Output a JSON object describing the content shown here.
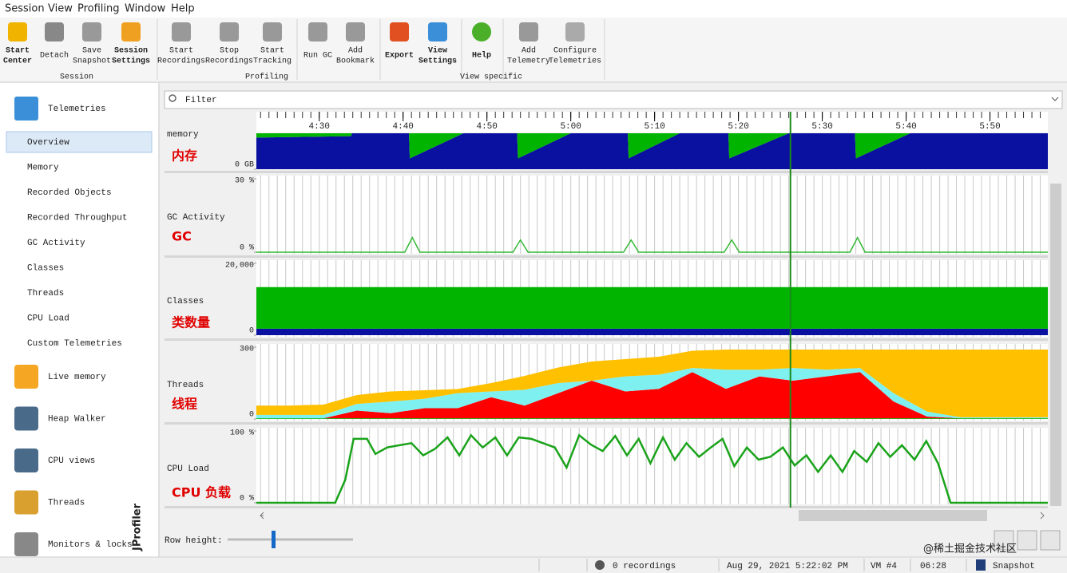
{
  "menu": [
    "Session",
    "View",
    "Profiling",
    "Window",
    "Help"
  ],
  "toolbar": [
    {
      "group": "Session",
      "buttons": [
        [
          "Start",
          "Center"
        ],
        [
          "Detach"
        ],
        [
          "Save",
          "Snapshot"
        ],
        [
          "Session",
          "Settings"
        ]
      ]
    },
    {
      "group": "Profiling",
      "buttons": [
        [
          "Start",
          "Recordings"
        ],
        [
          "Stop",
          "Recordings"
        ],
        [
          "Start",
          "Tracking"
        ],
        [
          "Run GC"
        ],
        [
          "Add",
          "Bookmark"
        ]
      ]
    },
    {
      "group": "View specific",
      "buttons": [
        [
          "Export"
        ],
        [
          "View",
          "Settings"
        ],
        [
          "Help"
        ],
        [
          "Add",
          "Telemetry"
        ],
        [
          "Configure",
          "Telemetries"
        ]
      ]
    }
  ],
  "sidebar": {
    "header": "Telemetries",
    "items": [
      "Overview",
      "Memory",
      "Recorded Objects",
      "Recorded Throughput",
      "GC Activity",
      "Classes",
      "Threads",
      "CPU Load",
      "Custom Telemetries"
    ],
    "sections": [
      "Live memory",
      "Heap Walker",
      "CPU views",
      "Threads",
      "Monitors & locks"
    ],
    "watermark": "JProfiler"
  },
  "filter": "Filter",
  "timeline": {
    "xlim": [
      262.5,
      356.9
    ],
    "ticks": [
      {
        "value": 270,
        "label": "4:30"
      },
      {
        "value": 280,
        "label": "4:40"
      },
      {
        "value": 290,
        "label": "4:50"
      },
      {
        "value": 300,
        "label": "5:00"
      },
      {
        "value": 310,
        "label": "5:10"
      },
      {
        "value": 320,
        "label": "5:20"
      },
      {
        "value": 330,
        "label": "5:30"
      },
      {
        "value": 340,
        "label": "5:40"
      },
      {
        "value": 350,
        "label": "5:50"
      }
    ],
    "cursor": 326.2
  },
  "rows": [
    {
      "label": "memory",
      "note": "内存",
      "type": "area",
      "ylim": [
        0,
        100
      ],
      "yticks": [
        {
          "value": 0,
          "label": "0 GB"
        }
      ],
      "series": [
        {
          "color": "#0a10a0",
          "x": [
            262.5,
            273.8,
            273.9,
            280.7,
            280.8,
            287.2,
            293.6,
            293.7,
            300,
            306.8,
            306.9,
            313,
            318.8,
            318.9,
            326,
            333.9,
            334,
            340.5,
            356.9
          ],
          "values": [
            88,
            92,
            100,
            100,
            30,
            100,
            100,
            30,
            100,
            100,
            30,
            100,
            100,
            30,
            100,
            100,
            30,
            100,
            100
          ]
        },
        {
          "color": "#00b400",
          "x": [
            262.5,
            273.8,
            273.9,
            280.7,
            280.8,
            287.2,
            293.6,
            293.7,
            300,
            306.8,
            306.9,
            313,
            318.8,
            318.9,
            326,
            333.9,
            334,
            340.5,
            356.9
          ],
          "values": [
            12,
            8,
            0,
            0,
            70,
            0,
            0,
            70,
            0,
            0,
            70,
            0,
            0,
            70,
            0,
            0,
            70,
            0,
            0
          ]
        }
      ]
    },
    {
      "label": "GC Activity",
      "note": "GC",
      "type": "line",
      "ylim": [
        0,
        30
      ],
      "yticks": [
        {
          "value": 0,
          "label": "0 %"
        },
        {
          "value": 30,
          "label": "30 %"
        }
      ],
      "series": [
        {
          "color": "#33b833",
          "x": [
            262.5,
            280.2,
            281.1,
            282,
            293.1,
            294,
            294.9,
            306.3,
            307.2,
            308.1,
            318.3,
            319.2,
            320.1,
            333.3,
            334.2,
            335.1,
            356.9
          ],
          "values": [
            0,
            0,
            6,
            0,
            0,
            5,
            0,
            0,
            5,
            0,
            0,
            5,
            0,
            0,
            6,
            0,
            0
          ]
        }
      ]
    },
    {
      "label": "Classes",
      "note": "类数量",
      "type": "area",
      "ylim": [
        0,
        20000
      ],
      "yticks": [
        0,
        {
          "value": 20000,
          "label": "20,000"
        }
      ],
      "series": [
        {
          "color": "#0a10a0",
          "x": [
            262.5,
            356.9
          ],
          "values": [
            1800,
            1800
          ]
        },
        {
          "color": "#00b400",
          "x": [
            262.5,
            356.9
          ],
          "values": [
            11600,
            11600
          ]
        }
      ]
    },
    {
      "label": "Threads",
      "note": "线程",
      "type": "area",
      "ylim": [
        0,
        300
      ],
      "yticks": [
        0,
        300
      ],
      "series": [
        {
          "color": "#00b400",
          "x": [
            262.5,
            266.5,
            270.5,
            274.5,
            278.5,
            282.5,
            286.5,
            290.5,
            294.5,
            298.5,
            302.5,
            306.5,
            310.5,
            314.5,
            318.5,
            322.5,
            326.5,
            330.5,
            334.5,
            338.5,
            342.5,
            346.5,
            350.5,
            354.5,
            356.9
          ],
          "values": [
            3,
            3,
            3,
            3,
            3,
            3,
            3,
            3,
            3,
            3,
            3,
            3,
            3,
            3,
            3,
            3,
            3,
            3,
            3,
            3,
            3,
            3,
            3,
            3,
            3
          ]
        },
        {
          "color": "#ff0000",
          "x": [
            262.5,
            266.5,
            270.5,
            274.5,
            278.5,
            282.5,
            286.5,
            290.5,
            294.5,
            298.5,
            302.5,
            306.5,
            310.5,
            314.5,
            318.5,
            322.5,
            326.5,
            330.5,
            334.5,
            338.5,
            342.5,
            346.5,
            350.5,
            354.5,
            356.9
          ],
          "values": [
            0,
            0,
            0,
            32,
            21,
            42,
            42,
            88,
            53,
            105,
            157,
            112,
            123,
            193,
            123,
            175,
            157,
            175,
            193,
            70,
            7,
            0,
            0,
            0,
            0
          ]
        },
        {
          "color": "#7ff0f0",
          "x": [
            262.5,
            266.5,
            270.5,
            274.5,
            278.5,
            282.5,
            286.5,
            290.5,
            294.5,
            298.5,
            302.5,
            306.5,
            310.5,
            314.5,
            318.5,
            322.5,
            326.5,
            330.5,
            334.5,
            338.5,
            342.5,
            346.5,
            350.5,
            354.5,
            356.9
          ],
          "values": [
            14,
            14,
            14,
            28,
            49,
            39,
            63,
            24,
            66,
            42,
            0,
            63,
            59,
            17,
            80,
            28,
            53,
            28,
            17,
            35,
            21,
            4,
            4,
            4,
            4
          ]
        },
        {
          "color": "#ffc000",
          "x": [
            262.5,
            266.5,
            270.5,
            274.5,
            278.5,
            282.5,
            286.5,
            290.5,
            294.5,
            298.5,
            302.5,
            306.5,
            310.5,
            314.5,
            318.5,
            322.5,
            326.5,
            330.5,
            334.5,
            338.5,
            342.5,
            346.5,
            350.5,
            354.5,
            356.9
          ],
          "values": [
            39,
            39,
            43,
            37,
            42,
            36,
            17,
            35,
            58,
            65,
            80,
            72,
            75,
            72,
            84,
            84,
            77,
            84,
            77,
            182,
            259,
            283,
            283,
            283,
            283
          ]
        }
      ]
    },
    {
      "label": "CPU Load",
      "note": "CPU 负载",
      "type": "line",
      "ylim": [
        0,
        100
      ],
      "yticks": [
        {
          "value": 0,
          "label": "0 %"
        },
        {
          "value": 100,
          "label": "100 %"
        }
      ],
      "series": [
        {
          "color": "#1aa31a",
          "x": [
            262.5,
            271.0,
            271.9,
            273.1,
            274.1,
            275.7,
            276.7,
            278.1,
            279.5,
            281.0,
            282.4,
            283.8,
            285.3,
            286.7,
            288.1,
            289.5,
            291.0,
            292.4,
            293.8,
            295.3,
            296.7,
            298.1,
            299.5,
            301.0,
            302.4,
            303.8,
            305.3,
            306.7,
            308.1,
            309.5,
            311.0,
            312.4,
            313.8,
            315.3,
            316.7,
            318.1,
            319.5,
            321.0,
            322.4,
            323.8,
            325.3,
            326.7,
            328.1,
            329.5,
            331.0,
            332.4,
            333.8,
            335.3,
            336.7,
            338.1,
            339.5,
            341.0,
            342.4,
            343.8,
            345.3,
            356.9
          ],
          "values": [
            0,
            0,
            0,
            32,
            89,
            89,
            68,
            77,
            80,
            83,
            66,
            75,
            91,
            66,
            94,
            77,
            91,
            66,
            91,
            89,
            83,
            77,
            49,
            94,
            81,
            72,
            93,
            66,
            89,
            55,
            91,
            60,
            83,
            64,
            77,
            89,
            51,
            77,
            60,
            64,
            77,
            52,
            66,
            43,
            66,
            43,
            72,
            57,
            83,
            64,
            80,
            60,
            86,
            55,
            0,
            0
          ]
        }
      ]
    }
  ],
  "row_height": "Row height:",
  "status": {
    "recordings": "0 recordings",
    "time": "Aug 29, 2021 5:22:02 PM",
    "vm": "VM #4",
    "elapsed": "06:28",
    "mode": "Snapshot"
  },
  "watermark": "@稀土掘金技术社区"
}
